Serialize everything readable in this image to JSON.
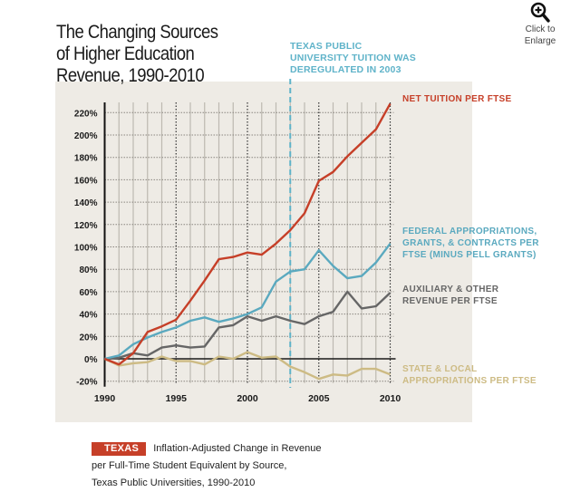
{
  "header": {
    "title_lines": [
      "The Changing Sources",
      "of Higher Education",
      "Revenue, 1990-2010"
    ],
    "enlarge": {
      "icon": "zoom-in-icon",
      "lines": [
        "Click to",
        "Enlarge"
      ]
    }
  },
  "annotation": {
    "lines": [
      "TEXAS PUBLIC",
      "UNIVERSITY TUITION WAS",
      "DEREGULATED IN 2003"
    ],
    "year": 2003,
    "color": "#5fb3c9"
  },
  "caption": {
    "badge": "TEXAS",
    "lines": [
      "Inflation-Adjusted Change in Revenue",
      "per Full-Time Student Equivalent by Source,",
      "Texas Public Universities, 1990-2010"
    ]
  },
  "chart_data": {
    "type": "line",
    "title": "The Changing Sources of Higher Education Revenue, 1990-2010",
    "xlabel": "",
    "ylabel": "",
    "x": [
      1990,
      1991,
      1992,
      1993,
      1994,
      1995,
      1996,
      1997,
      1998,
      1999,
      2000,
      2001,
      2002,
      2003,
      2004,
      2005,
      2006,
      2007,
      2008,
      2009,
      2010
    ],
    "xticks": [
      1990,
      1995,
      2000,
      2005,
      2010
    ],
    "xtick_labels": [
      "1990",
      "1995",
      "2000",
      "2005",
      "2010"
    ],
    "yticks": [
      -20,
      0,
      20,
      40,
      60,
      80,
      100,
      120,
      140,
      160,
      180,
      200,
      220
    ],
    "ytick_labels": [
      "-20%",
      "0%",
      "20%",
      "40%",
      "60%",
      "80%",
      "100%",
      "120%",
      "140%",
      "160%",
      "180%",
      "200%",
      "220%"
    ],
    "xlim": [
      1990,
      2010
    ],
    "ylim": [
      -20,
      225
    ],
    "grid": true,
    "legend": "right (direct labels)",
    "series": [
      {
        "name": "Net Tuition per FTSE",
        "label_lines": [
          "NET TUITION PER FTSE"
        ],
        "color": "#c63f28",
        "values": [
          0,
          -5,
          5,
          24,
          29,
          35,
          52,
          70,
          89,
          91,
          95,
          93,
          103,
          115,
          130,
          159,
          167,
          181,
          193,
          205,
          228
        ]
      },
      {
        "name": "Federal Appropriations, Grants, & Contracts per FTSE (minus Pell Grants)",
        "label_lines": [
          "FEDERAL APPROPRIATIONS,",
          "GRANTS, & CONTRACTS PER",
          "FTSE (MINUS PELL GRANTS)"
        ],
        "color": "#5aa9bf",
        "values": [
          0,
          3,
          13,
          19,
          24,
          28,
          34,
          37,
          33,
          36,
          40,
          46,
          69,
          78,
          80,
          97,
          83,
          72,
          74,
          86,
          103
        ]
      },
      {
        "name": "Auxiliary & Other Revenue per FTSE",
        "label_lines": [
          "AUXILIARY & OTHER",
          "REVENUE PER FTSE"
        ],
        "color": "#666666",
        "values": [
          0,
          1,
          5,
          3,
          10,
          12,
          10,
          11,
          28,
          30,
          38,
          34,
          38,
          34,
          31,
          38,
          42,
          60,
          45,
          47,
          59
        ]
      },
      {
        "name": "State & Local Appropriations per FTSE",
        "label_lines": [
          "STATE & LOCAL",
          "APPROPRIATIONS PER FTSE"
        ],
        "color": "#cdbb84",
        "values": [
          0,
          -6,
          -4,
          -3,
          2,
          -2,
          -2,
          -5,
          2,
          0,
          6,
          1,
          2,
          -7,
          -12,
          -18,
          -14,
          -15,
          -9,
          -9,
          -14
        ]
      }
    ]
  }
}
